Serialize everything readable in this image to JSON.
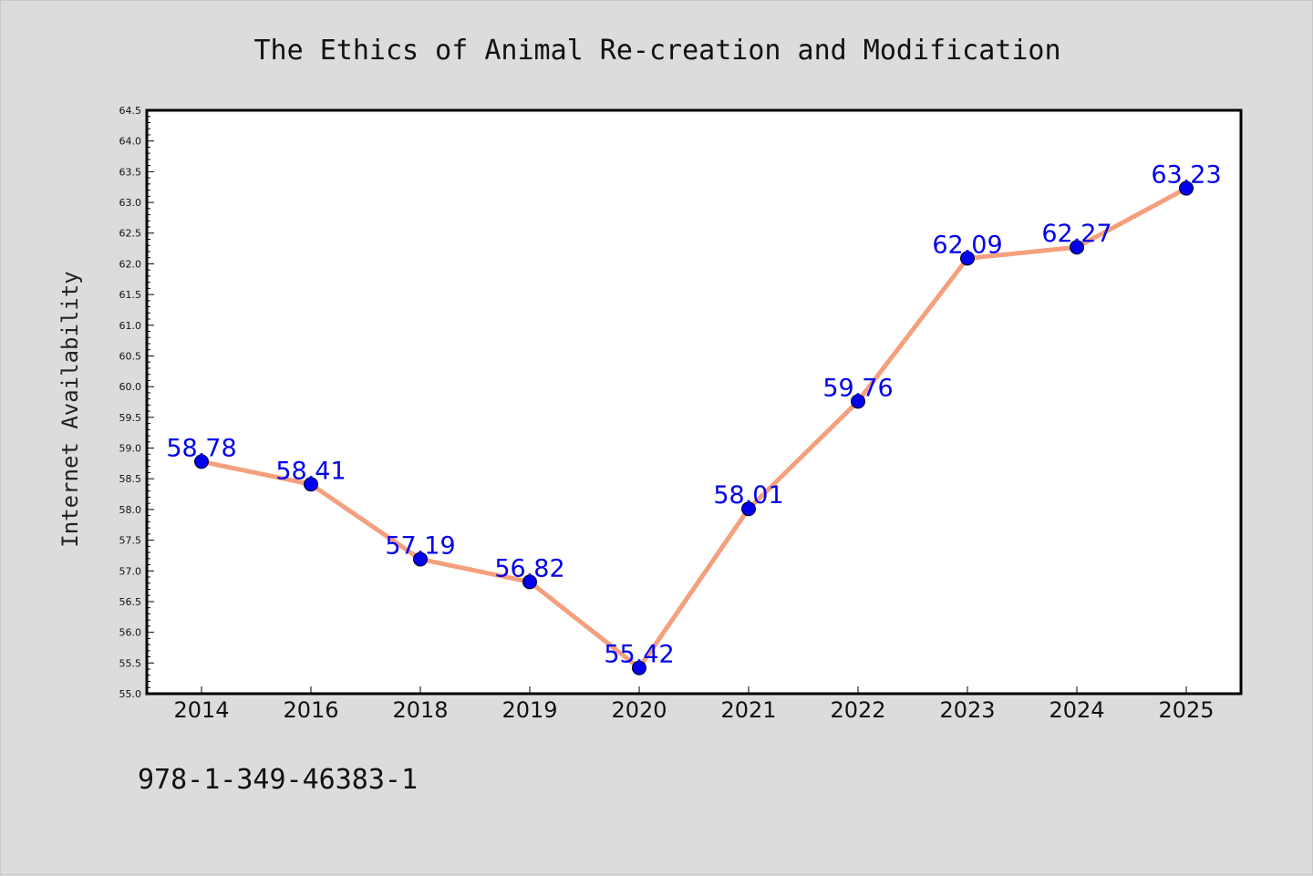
{
  "colors": {
    "background": "#dcdcdc",
    "plot_background": "#ffffff",
    "line": "#f4a07e",
    "marker": "#0000ee",
    "label": "#0000ee"
  },
  "footer_text": "978-1-349-46383-1",
  "chart_data": {
    "type": "line",
    "title": "The Ethics of Animal Re-creation and Modification",
    "xlabel": "",
    "ylabel": "Internet Availability",
    "categories": [
      "2014",
      "2016",
      "2018",
      "2019",
      "2020",
      "2021",
      "2022",
      "2023",
      "2024",
      "2025"
    ],
    "series": [
      {
        "values": [
          58.78,
          58.41,
          57.19,
          56.82,
          55.42,
          58.01,
          59.76,
          62.09,
          62.27,
          63.23
        ],
        "labels": [
          "58.78",
          "58.41",
          "57.19",
          "56.82",
          "55.42",
          "58.01",
          "59.76",
          "62.09",
          "62.27",
          "63.23"
        ]
      }
    ],
    "ylim": [
      55.0,
      64.5
    ],
    "yticks": [
      "55.0",
      "55.5",
      "56.0",
      "56.5",
      "57.0",
      "57.5",
      "58.0",
      "58.5",
      "59.0",
      "59.5",
      "60.0",
      "60.5",
      "61.0",
      "61.5",
      "62.0",
      "62.5",
      "63.0",
      "63.5",
      "64.0",
      "64.5"
    ],
    "grid": false,
    "legend": "none"
  }
}
